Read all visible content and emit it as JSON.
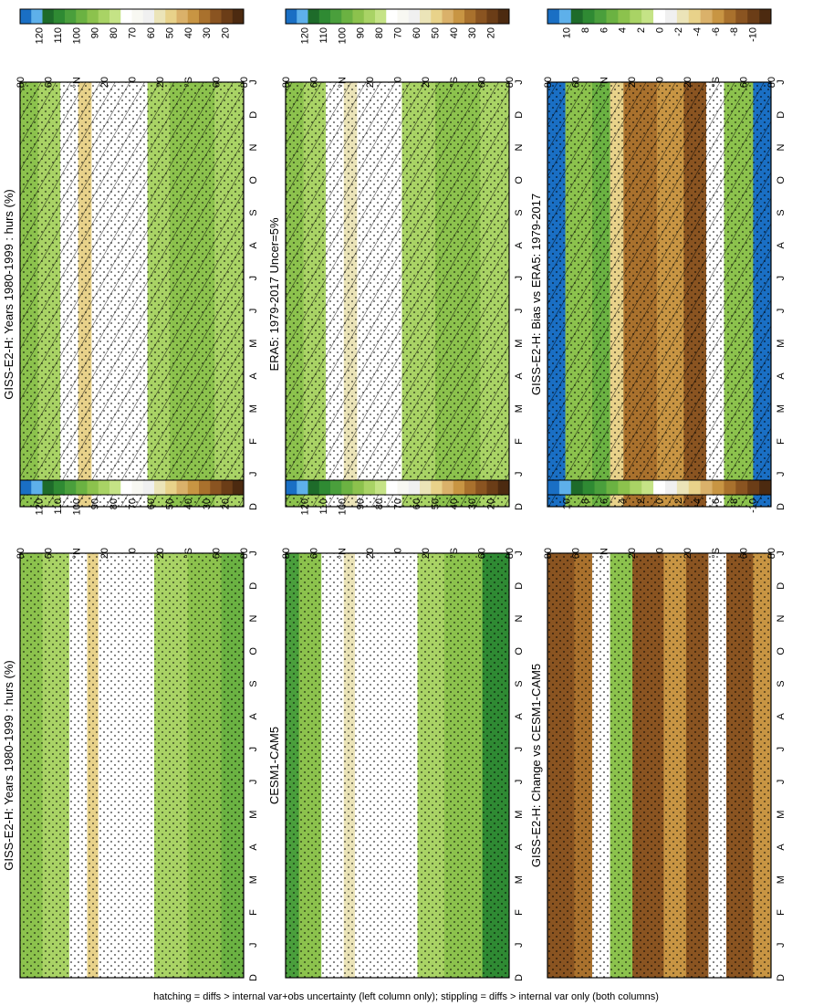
{
  "figure": {
    "footnote": "hatching = diffs > internal var+obs uncertainty (left column only); stippling = diffs > internal var only (both columns)"
  },
  "palettes": {
    "hours": [
      "#1a6fc4",
      "#5eb0ea",
      "#1e6b2a",
      "#2f8a33",
      "#4a9f3c",
      "#6bb242",
      "#8cc24d",
      "#a9d365",
      "#c5e386",
      "#ffffff",
      "#f8f8f2",
      "#f0f0f0",
      "#ebe4b8",
      "#e8d28a",
      "#dab16a",
      "#c89543",
      "#a9712d",
      "#8a5421",
      "#6b3d17",
      "#4c2a10"
    ],
    "diff": [
      "#1a6fc4",
      "#5eb0ea",
      "#1e6b2a",
      "#2f8a33",
      "#4a9f3c",
      "#6bb242",
      "#8cc24d",
      "#a9d365",
      "#c5e386",
      "#ffffff",
      "#f0f0f0",
      "#ebe4b8",
      "#e8d28a",
      "#dab16a",
      "#c89543",
      "#a9712d",
      "#8a5421",
      "#6b3d17",
      "#4c2a10"
    ]
  },
  "chart_data": [
    {
      "id": "p1",
      "type": "heatmap",
      "title": "GISS-E2-H: Years 1980-1999 : hurs (%)",
      "x_ticks": [
        "D",
        "J",
        "F",
        "M",
        "A",
        "M",
        "J",
        "J",
        "A",
        "S",
        "O",
        "N",
        "D",
        "J"
      ],
      "y_ticks": [
        "80",
        "60",
        "°N",
        "20",
        "0",
        "20",
        "°S",
        "60",
        "80"
      ],
      "colorbar": {
        "ticks": [
          "120",
          "110",
          "100",
          "90",
          "80",
          "70",
          "60",
          "50",
          "40",
          "30",
          "20"
        ],
        "palette": "hours"
      },
      "stippling": true,
      "hatching": true
    },
    {
      "id": "p2",
      "type": "heatmap",
      "title": "GISS-E2-H: Years 1980-1999 : hurs (%)",
      "x_ticks": [
        "D",
        "J",
        "F",
        "M",
        "A",
        "M",
        "J",
        "J",
        "A",
        "S",
        "O",
        "N",
        "D",
        "J"
      ],
      "y_ticks": [
        "80",
        "60",
        "°N",
        "20",
        "0",
        "20",
        "°S",
        "60",
        "80"
      ],
      "colorbar": {
        "ticks": [
          "120",
          "110",
          "100",
          "90",
          "80",
          "70",
          "60",
          "50",
          "40",
          "30",
          "20"
        ],
        "palette": "hours"
      },
      "stippling": true,
      "hatching": false
    },
    {
      "id": "p3",
      "type": "heatmap",
      "title": "ERA5: 1979-2017 Uncer=5%",
      "x_ticks": [
        "D",
        "J",
        "F",
        "M",
        "A",
        "M",
        "J",
        "J",
        "A",
        "S",
        "O",
        "N",
        "D",
        "J"
      ],
      "y_ticks": [
        "80",
        "60",
        "°N",
        "20",
        "0",
        "20",
        "°S",
        "60",
        "80"
      ],
      "colorbar": {
        "ticks": [
          "120",
          "110",
          "100",
          "90",
          "80",
          "70",
          "60",
          "50",
          "40",
          "30",
          "20"
        ],
        "palette": "hours"
      },
      "stippling": true,
      "hatching": true
    },
    {
      "id": "p4",
      "type": "heatmap",
      "title": "CESM1-CAM5",
      "x_ticks": [
        "D",
        "J",
        "F",
        "M",
        "A",
        "M",
        "J",
        "J",
        "A",
        "S",
        "O",
        "N",
        "D",
        "J"
      ],
      "y_ticks": [
        "80",
        "60",
        "°N",
        "20",
        "0",
        "20",
        "°S",
        "60",
        "80"
      ],
      "colorbar": {
        "ticks": [
          "120",
          "110",
          "100",
          "90",
          "80",
          "70",
          "60",
          "50",
          "40",
          "30",
          "20"
        ],
        "palette": "hours"
      },
      "stippling": true,
      "hatching": false
    },
    {
      "id": "p5",
      "type": "heatmap",
      "title": "GISS-E2-H: Bias vs ERA5: 1979-2017",
      "x_ticks": [
        "D",
        "J",
        "F",
        "M",
        "A",
        "M",
        "J",
        "J",
        "A",
        "S",
        "O",
        "N",
        "D",
        "J"
      ],
      "y_ticks": [
        "80",
        "60",
        "°N",
        "20",
        "0",
        "20",
        "°S",
        "60",
        "80"
      ],
      "colorbar": {
        "ticks": [
          "10",
          "8",
          "6",
          "4",
          "2",
          "0",
          "-2",
          "-4",
          "-6",
          "-8",
          "-10"
        ],
        "palette": "diff"
      },
      "stippling": true,
      "hatching": true
    },
    {
      "id": "p6",
      "type": "heatmap",
      "title": "GISS-E2-H: Change vs CESM1-CAM5",
      "x_ticks": [
        "D",
        "J",
        "F",
        "M",
        "A",
        "M",
        "J",
        "J",
        "A",
        "S",
        "O",
        "N",
        "D",
        "J"
      ],
      "y_ticks": [
        "80",
        "60",
        "°N",
        "20",
        "0",
        "20",
        "°S",
        "60",
        "80"
      ],
      "colorbar": {
        "ticks": [
          "10",
          "8",
          "6",
          "4",
          "2",
          "0",
          "-2",
          "-4",
          "-6",
          "-8",
          "-10"
        ],
        "palette": "diff"
      },
      "stippling": true,
      "hatching": false
    }
  ]
}
